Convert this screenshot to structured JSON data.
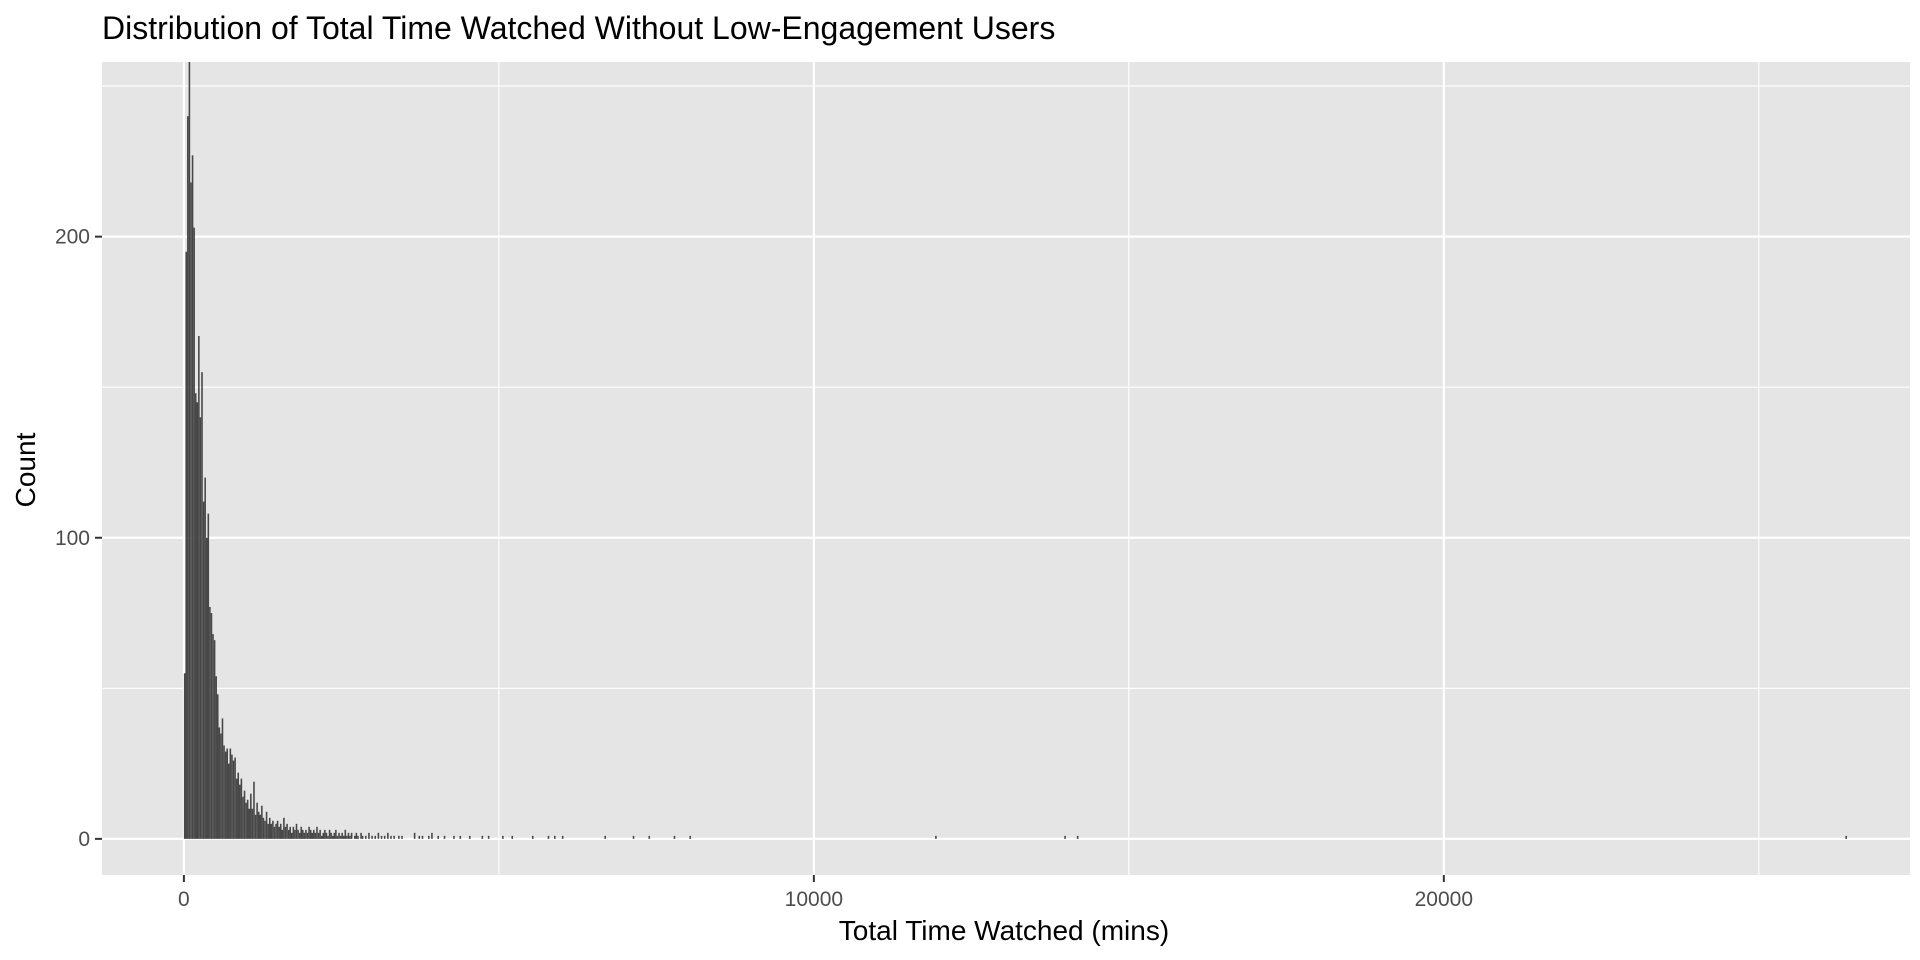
{
  "chart_data": {
    "type": "bar",
    "title": "Distribution of Total Time Watched Without Low-Engagement Users",
    "xlabel": "Total Time Watched (mins)",
    "ylabel": "Count",
    "xlim": [
      -1300,
      27400
    ],
    "ylim": [
      -12,
      258
    ],
    "x_ticks": [
      0,
      10000,
      20000
    ],
    "x_tick_labels": [
      "0",
      "10000",
      "20000"
    ],
    "x_minor": [
      5000,
      15000,
      25000
    ],
    "y_ticks": [
      0,
      100,
      200
    ],
    "y_tick_labels": [
      "0",
      "100",
      "200"
    ],
    "y_minor": [
      50,
      150,
      250
    ],
    "grid": true,
    "panel_background": "#e5e5e5",
    "grid_color": "#ffffff",
    "bar_color": "#474747",
    "bin_width": 25,
    "bins": [
      [
        0,
        55
      ],
      [
        25,
        195
      ],
      [
        50,
        240
      ],
      [
        75,
        258
      ],
      [
        100,
        218
      ],
      [
        125,
        227
      ],
      [
        150,
        203
      ],
      [
        175,
        148
      ],
      [
        200,
        145
      ],
      [
        225,
        167
      ],
      [
        250,
        140
      ],
      [
        275,
        155
      ],
      [
        300,
        112
      ],
      [
        325,
        120
      ],
      [
        350,
        100
      ],
      [
        375,
        108
      ],
      [
        400,
        77
      ],
      [
        425,
        75
      ],
      [
        450,
        68
      ],
      [
        475,
        66
      ],
      [
        500,
        54
      ],
      [
        525,
        48
      ],
      [
        550,
        37
      ],
      [
        575,
        35
      ],
      [
        600,
        40
      ],
      [
        625,
        31
      ],
      [
        650,
        29
      ],
      [
        675,
        30
      ],
      [
        700,
        25
      ],
      [
        725,
        30
      ],
      [
        750,
        28
      ],
      [
        775,
        26
      ],
      [
        800,
        27
      ],
      [
        825,
        20
      ],
      [
        850,
        22
      ],
      [
        875,
        18
      ],
      [
        900,
        20
      ],
      [
        925,
        14
      ],
      [
        950,
        16
      ],
      [
        975,
        12
      ],
      [
        1000,
        13
      ],
      [
        1025,
        10
      ],
      [
        1050,
        15
      ],
      [
        1075,
        10
      ],
      [
        1100,
        19
      ],
      [
        1125,
        8
      ],
      [
        1150,
        12
      ],
      [
        1175,
        9
      ],
      [
        1200,
        8
      ],
      [
        1225,
        11
      ],
      [
        1250,
        7
      ],
      [
        1275,
        6
      ],
      [
        1300,
        9
      ],
      [
        1325,
        5
      ],
      [
        1350,
        7
      ],
      [
        1375,
        5
      ],
      [
        1400,
        6
      ],
      [
        1425,
        4
      ],
      [
        1450,
        5
      ],
      [
        1475,
        6
      ],
      [
        1500,
        4
      ],
      [
        1525,
        5
      ],
      [
        1550,
        3
      ],
      [
        1575,
        7
      ],
      [
        1600,
        4
      ],
      [
        1625,
        5
      ],
      [
        1650,
        3
      ],
      [
        1675,
        4
      ],
      [
        1700,
        2
      ],
      [
        1725,
        4
      ],
      [
        1750,
        3
      ],
      [
        1775,
        5
      ],
      [
        1800,
        3
      ],
      [
        1825,
        2
      ],
      [
        1850,
        4
      ],
      [
        1875,
        3
      ],
      [
        1900,
        2
      ],
      [
        1925,
        3
      ],
      [
        1950,
        2
      ],
      [
        1975,
        4
      ],
      [
        2000,
        3
      ],
      [
        2025,
        2
      ],
      [
        2050,
        3
      ],
      [
        2075,
        2
      ],
      [
        2100,
        4
      ],
      [
        2125,
        2
      ],
      [
        2150,
        3
      ],
      [
        2175,
        1
      ],
      [
        2200,
        2
      ],
      [
        2225,
        3
      ],
      [
        2250,
        2
      ],
      [
        2275,
        1
      ],
      [
        2300,
        3
      ],
      [
        2325,
        2
      ],
      [
        2350,
        1
      ],
      [
        2375,
        2
      ],
      [
        2400,
        3
      ],
      [
        2425,
        1
      ],
      [
        2450,
        2
      ],
      [
        2475,
        1
      ],
      [
        2500,
        2
      ],
      [
        2525,
        1
      ],
      [
        2550,
        3
      ],
      [
        2575,
        1
      ],
      [
        2600,
        2
      ],
      [
        2625,
        1
      ],
      [
        2650,
        2
      ],
      [
        2700,
        1
      ],
      [
        2725,
        2
      ],
      [
        2750,
        1
      ],
      [
        2800,
        2
      ],
      [
        2825,
        1
      ],
      [
        2875,
        1
      ],
      [
        2925,
        2
      ],
      [
        2975,
        1
      ],
      [
        3025,
        1
      ],
      [
        3075,
        2
      ],
      [
        3125,
        1
      ],
      [
        3175,
        1
      ],
      [
        3225,
        2
      ],
      [
        3275,
        1
      ],
      [
        3325,
        1
      ],
      [
        3400,
        1
      ],
      [
        3450,
        1
      ],
      [
        3650,
        2
      ],
      [
        3725,
        1
      ],
      [
        3775,
        1
      ],
      [
        3875,
        1
      ],
      [
        3925,
        2
      ],
      [
        4025,
        1
      ],
      [
        4125,
        1
      ],
      [
        4275,
        1
      ],
      [
        4375,
        1
      ],
      [
        4525,
        1
      ],
      [
        4725,
        1
      ],
      [
        4825,
        1
      ],
      [
        5050,
        1
      ],
      [
        5200,
        1
      ],
      [
        5525,
        1
      ],
      [
        5775,
        1
      ],
      [
        5875,
        1
      ],
      [
        6000,
        1
      ],
      [
        6675,
        1
      ],
      [
        7125,
        1
      ],
      [
        7375,
        1
      ],
      [
        7775,
        1
      ],
      [
        8025,
        1
      ],
      [
        11925,
        1
      ],
      [
        13975,
        1
      ],
      [
        14175,
        1
      ],
      [
        26375,
        1
      ]
    ]
  }
}
